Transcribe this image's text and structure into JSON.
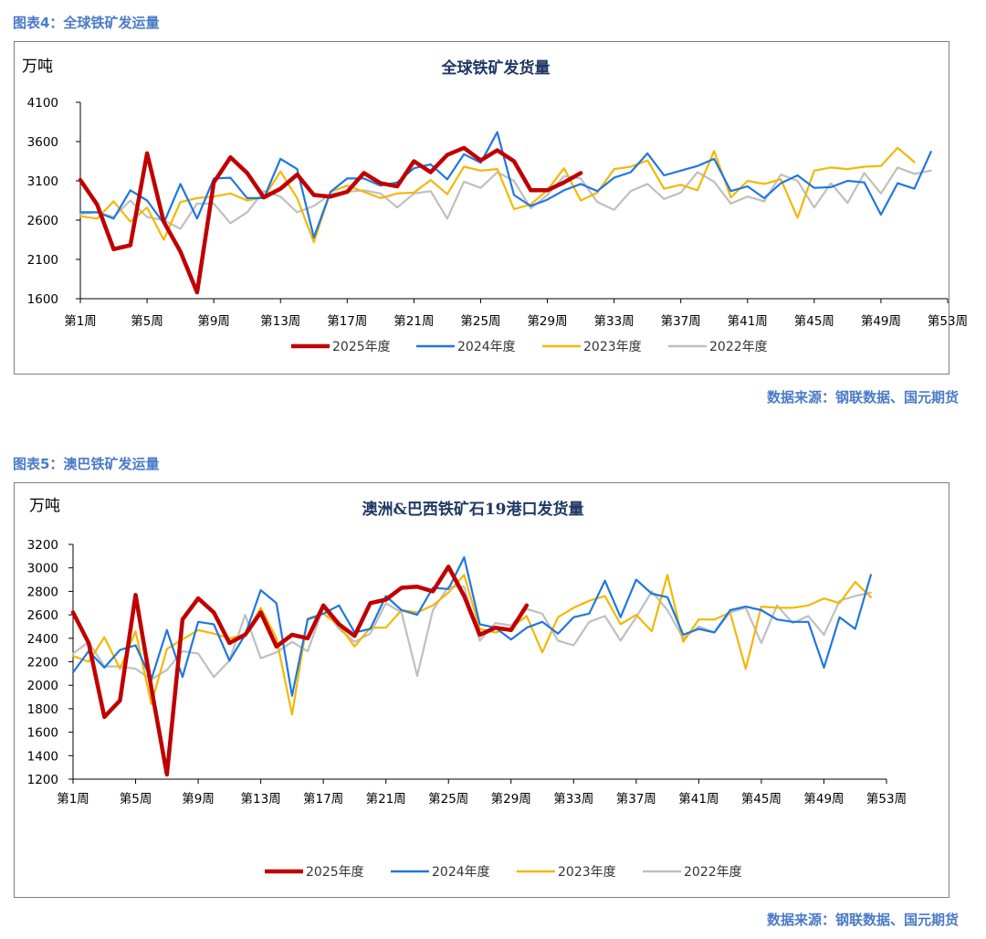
{
  "figures": [
    {
      "caption": "图表4：全球铁矿发运量",
      "source": "数据来源：钢联数据、国元期货"
    },
    {
      "caption": "图表5：澳巴铁矿发运量",
      "source": "数据来源：钢联数据、国元期货"
    }
  ],
  "series_colors": {
    "2025年度": "#c00000",
    "2024年度": "#1f77e0",
    "2023年度": "#f2b807",
    "2022年度": "#bfbfbf"
  },
  "chart_data": [
    {
      "type": "line",
      "title": "全球铁矿发货量",
      "unit": "万吨",
      "ylim": [
        1600,
        4100
      ],
      "yticks": [
        1600,
        2100,
        2600,
        3100,
        3600,
        4100
      ],
      "xlim": [
        1,
        53
      ],
      "xticks": [
        1,
        5,
        9,
        13,
        17,
        21,
        25,
        29,
        33,
        37,
        41,
        45,
        49,
        53
      ],
      "xtick_labels": [
        "第1周",
        "第5周",
        "第9周",
        "第13周",
        "第17周",
        "第21周",
        "第25周",
        "第29周",
        "第33周",
        "第37周",
        "第41周",
        "第45周",
        "第49周",
        "第53周"
      ],
      "legend_position": "bottom",
      "grid": false,
      "series": [
        {
          "name": "2025年度",
          "values": [
            3110,
            2800,
            2230,
            2280,
            3450,
            2580,
            2200,
            1680,
            3080,
            3400,
            3200,
            2890,
            3000,
            3180,
            2920,
            2900,
            2960,
            3200,
            3070,
            3030,
            3350,
            3210,
            3430,
            3520,
            3360,
            3490,
            3350,
            2980,
            2980,
            3080,
            3200
          ]
        },
        {
          "name": "2024年度",
          "values": [
            2700,
            2700,
            2620,
            2980,
            2850,
            2560,
            3060,
            2620,
            3130,
            3140,
            2880,
            2880,
            3380,
            3250,
            2380,
            2960,
            3130,
            3130,
            3040,
            3080,
            3260,
            3310,
            3120,
            3440,
            3330,
            3720,
            2920,
            2780,
            2860,
            2980,
            3060,
            2970,
            3140,
            3210,
            3450,
            3170,
            3230,
            3290,
            3380,
            2970,
            3030,
            2880,
            3070,
            3170,
            3010,
            3020,
            3100,
            3080,
            2670,
            3070,
            3000,
            3470
          ]
        },
        {
          "name": "2023年度",
          "values": [
            2650,
            2620,
            2840,
            2580,
            2760,
            2350,
            2830,
            2880,
            2900,
            2940,
            2850,
            2890,
            3220,
            2880,
            2320,
            2960,
            3040,
            2960,
            2880,
            2940,
            2950,
            3110,
            2930,
            3280,
            3230,
            3250,
            2740,
            2800,
            2980,
            3260,
            2850,
            2950,
            3250,
            3280,
            3360,
            3000,
            3050,
            2980,
            3480,
            2890,
            3100,
            3060,
            3120,
            2630,
            3230,
            3270,
            3250,
            3280,
            3290,
            3520,
            3340
          ]
        },
        {
          "name": "2022年度",
          "values": [
            2680,
            2700,
            2640,
            2850,
            2640,
            2600,
            2490,
            2810,
            2810,
            2560,
            2700,
            2970,
            2900,
            2700,
            2780,
            2930,
            2960,
            2980,
            2940,
            2760,
            2940,
            2970,
            2620,
            3090,
            3010,
            3210,
            3100,
            2750,
            2920,
            3160,
            3130,
            2830,
            2730,
            2970,
            3060,
            2870,
            2950,
            3210,
            3090,
            2810,
            2900,
            2840,
            3180,
            3100,
            2760,
            3070,
            2820,
            3200,
            2940,
            3270,
            3190,
            3230
          ]
        }
      ]
    },
    {
      "type": "line",
      "title": "澳洲&巴西铁矿石19港口发货量",
      "unit": "万吨",
      "ylim": [
        1200,
        3200
      ],
      "yticks": [
        1200,
        1400,
        1600,
        1800,
        2000,
        2200,
        2400,
        2600,
        2800,
        3000,
        3200
      ],
      "xlim": [
        1,
        53
      ],
      "xticks": [
        1,
        5,
        9,
        13,
        17,
        21,
        25,
        29,
        33,
        37,
        41,
        45,
        49,
        53
      ],
      "xtick_labels": [
        "第1周",
        "第5周",
        "第9周",
        "第13周",
        "第17周",
        "第21周",
        "第25周",
        "第29周",
        "第33周",
        "第37周",
        "第41周",
        "第45周",
        "第49周",
        "第53周"
      ],
      "legend_position": "bottom",
      "grid": false,
      "series": [
        {
          "name": "2025年度",
          "values": [
            2620,
            2360,
            1730,
            1870,
            2770,
            1980,
            1240,
            2560,
            2740,
            2620,
            2360,
            2430,
            2620,
            2330,
            2430,
            2400,
            2680,
            2520,
            2420,
            2700,
            2730,
            2830,
            2840,
            2800,
            3010,
            2760,
            2430,
            2490,
            2470,
            2680
          ]
        },
        {
          "name": "2024年度",
          "values": [
            2110,
            2290,
            2150,
            2300,
            2340,
            2050,
            2470,
            2070,
            2540,
            2520,
            2210,
            2430,
            2810,
            2700,
            1910,
            2560,
            2610,
            2680,
            2450,
            2480,
            2760,
            2640,
            2600,
            2830,
            2820,
            3090,
            2520,
            2490,
            2390,
            2490,
            2540,
            2440,
            2580,
            2610,
            2890,
            2580,
            2900,
            2780,
            2750,
            2430,
            2480,
            2450,
            2640,
            2670,
            2640,
            2560,
            2540,
            2540,
            2150,
            2580,
            2480,
            2940
          ]
        },
        {
          "name": "2023年度",
          "values": [
            2250,
            2200,
            2410,
            2140,
            2460,
            1840,
            2310,
            2390,
            2470,
            2440,
            2400,
            2430,
            2660,
            2400,
            1750,
            2570,
            2610,
            2510,
            2330,
            2490,
            2490,
            2640,
            2620,
            2680,
            2790,
            2940,
            2480,
            2450,
            2490,
            2590,
            2280,
            2580,
            2660,
            2720,
            2760,
            2520,
            2600,
            2460,
            2940,
            2370,
            2560,
            2560,
            2620,
            2140,
            2670,
            2660,
            2660,
            2680,
            2740,
            2700,
            2880,
            2750
          ]
        },
        {
          "name": "2022年度",
          "values": [
            2270,
            2370,
            2160,
            2160,
            2140,
            2050,
            2130,
            2290,
            2270,
            2070,
            2210,
            2600,
            2230,
            2280,
            2370,
            2290,
            2660,
            2480,
            2370,
            2440,
            2700,
            2620,
            2080,
            2640,
            2840,
            2840,
            2380,
            2530,
            2510,
            2650,
            2610,
            2380,
            2340,
            2540,
            2590,
            2380,
            2580,
            2800,
            2640,
            2400,
            2500,
            2450,
            2620,
            2660,
            2360,
            2680,
            2530,
            2590,
            2430,
            2720,
            2760,
            2790
          ]
        }
      ]
    }
  ]
}
